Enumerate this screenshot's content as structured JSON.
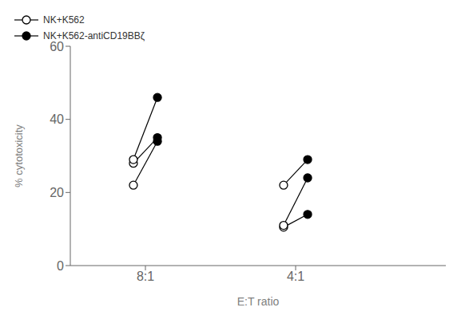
{
  "chart_data": {
    "type": "scatter",
    "xlabel": "E:T ratio",
    "ylabel": "% cytotoxicity",
    "categories": [
      "8:1",
      "4:1"
    ],
    "ylim": [
      0,
      60
    ],
    "yticks": [
      0,
      20,
      40,
      60
    ],
    "grid": false,
    "legend": "top",
    "series": [
      {
        "name": "NK+K562",
        "color": "#000000",
        "marker": "open_circle",
        "values": [
          [
            22,
            28,
            29
          ],
          [
            10.5,
            11,
            22
          ]
        ]
      },
      {
        "name": "NK+K562-antiCD19BBζ",
        "color": "#000000",
        "marker": "filled_circle",
        "values": [
          [
            34,
            35,
            46
          ],
          [
            14,
            24,
            29
          ]
        ]
      }
    ]
  }
}
